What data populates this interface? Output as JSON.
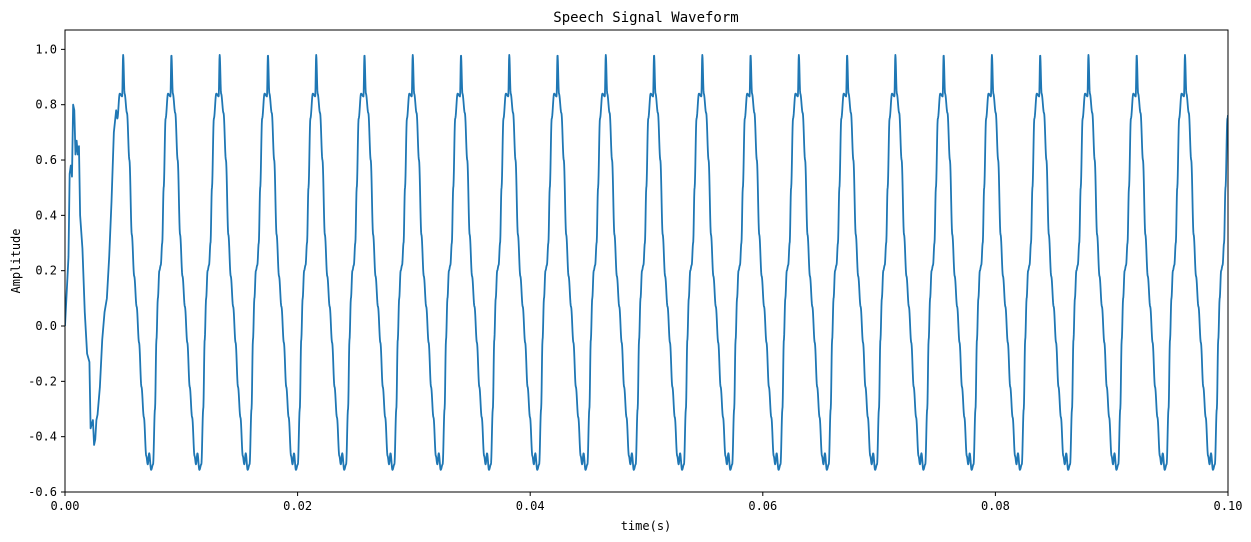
{
  "chart_data": {
    "type": "line",
    "title": "Speech Signal Waveform",
    "xlabel": "time(s)",
    "ylabel": "Amplitude",
    "xlim": [
      0.0,
      0.1
    ],
    "ylim": [
      -0.6,
      1.07
    ],
    "x_ticks": [
      0.0,
      0.02,
      0.04,
      0.06,
      0.08,
      0.1
    ],
    "x_tick_labels": [
      "0.00",
      "0.02",
      "0.04",
      "0.06",
      "0.08",
      "0.10"
    ],
    "y_ticks": [
      -0.6,
      -0.4,
      -0.2,
      0.0,
      0.2,
      0.4,
      0.6,
      0.8,
      1.0
    ],
    "y_tick_labels": [
      "-0.6",
      "-0.4",
      "-0.2",
      "0.0",
      "0.2",
      "0.4",
      "0.6",
      "0.8",
      "1.0"
    ],
    "grid": false,
    "legend": "none",
    "series": [
      {
        "color": "#1f77b4",
        "waveform": {
          "period_s": 0.00415,
          "cycle_start_s": 0.0045,
          "template_phase": [
            0.0,
            0.05,
            0.1,
            0.12,
            0.15,
            0.2,
            0.25,
            0.3,
            0.35,
            0.4,
            0.45,
            0.5,
            0.55,
            0.6,
            0.63,
            0.66,
            0.7,
            0.74,
            0.78,
            0.81,
            0.84,
            0.87,
            0.9,
            0.93,
            0.96,
            1.0
          ],
          "template_value": [
            0.75,
            0.84,
            0.83,
            0.98,
            0.84,
            0.77,
            0.6,
            0.33,
            0.18,
            0.07,
            -0.06,
            -0.22,
            -0.33,
            -0.47,
            -0.5,
            -0.46,
            -0.52,
            -0.5,
            -0.3,
            -0.05,
            0.1,
            0.2,
            0.22,
            0.3,
            0.5,
            0.75
          ],
          "onset_x": [
            0.0,
            0.0003,
            0.0004,
            0.0005,
            0.0006,
            0.0007,
            0.0008,
            0.0009,
            0.001,
            0.0011,
            0.0012,
            0.0013,
            0.0015,
            0.0017,
            0.0019,
            0.0021,
            0.0022,
            0.0024,
            0.0025,
            0.0026,
            0.0027,
            0.0028,
            0.003,
            0.0032,
            0.0034,
            0.0036,
            0.0038,
            0.004,
            0.0042,
            0.0044,
            0.0045
          ],
          "onset_y": [
            0.0,
            0.25,
            0.55,
            0.58,
            0.54,
            0.8,
            0.78,
            0.62,
            0.67,
            0.62,
            0.65,
            0.4,
            0.28,
            0.05,
            -0.1,
            -0.13,
            -0.37,
            -0.34,
            -0.43,
            -0.41,
            -0.34,
            -0.32,
            -0.22,
            -0.05,
            0.05,
            0.1,
            0.25,
            0.45,
            0.7,
            0.78,
            0.75
          ]
        }
      }
    ]
  }
}
